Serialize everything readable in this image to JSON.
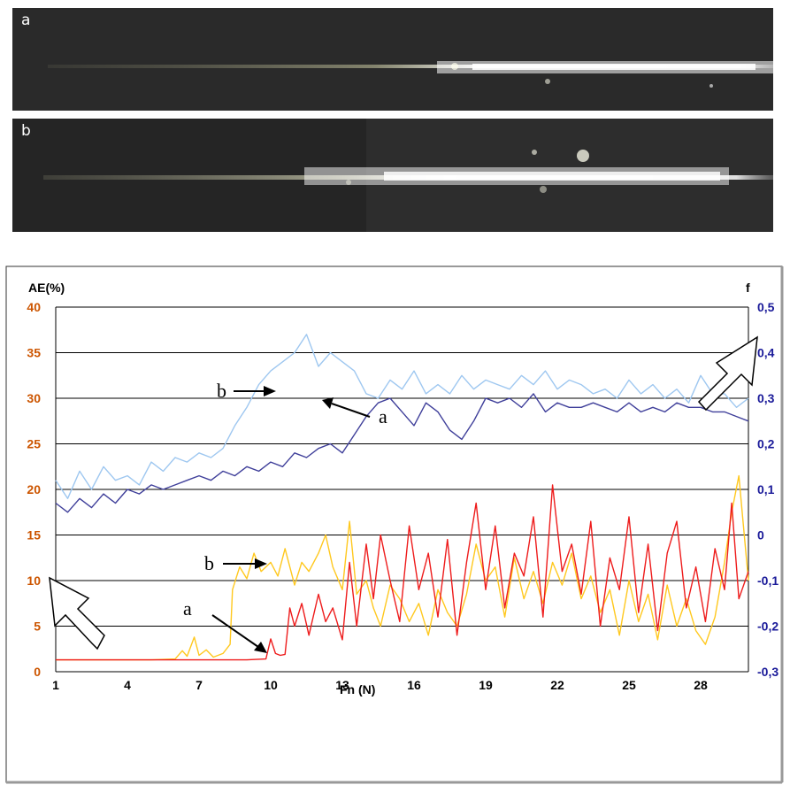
{
  "photos": [
    {
      "label": "a"
    },
    {
      "label": "b"
    }
  ],
  "chart_data": {
    "type": "line",
    "xlabel": "Fn (N)",
    "ylabel_left": "AE(%)",
    "ylabel_right": "f",
    "x_ticks": [
      "1",
      "4",
      "7",
      "10",
      "13",
      "16",
      "19",
      "22",
      "25",
      "28"
    ],
    "xlim": [
      1,
      30
    ],
    "y_left_ticks": [
      "0",
      "5",
      "10",
      "15",
      "20",
      "25",
      "30",
      "35",
      "40"
    ],
    "ylim_left": [
      0,
      40
    ],
    "y_right_ticks": [
      "-0,3",
      "-0,2",
      "-0,1",
      "0",
      "0,1",
      "0,2",
      "0,3",
      "0,4",
      "0,5"
    ],
    "ylim_right": [
      -0.3,
      0.5
    ],
    "grid": "horizontal",
    "colors": {
      "left_axis": "#cc5500",
      "right_axis": "#1a1a99",
      "friction_a": "#3f3f9a",
      "friction_b": "#9ec7f0",
      "ae_a": "#ee1c1c",
      "ae_b": "#ffc81e"
    },
    "series": [
      {
        "name": "b",
        "axis": "right",
        "x": [
          1,
          1.5,
          2,
          2.5,
          3,
          3.5,
          4,
          4.5,
          5,
          5.5,
          6,
          6.5,
          7,
          7.5,
          8,
          8.5,
          9,
          9.5,
          10,
          10.5,
          11,
          11.5,
          12,
          12.5,
          13,
          13.5,
          14,
          14.5,
          15,
          15.5,
          16,
          16.5,
          17,
          17.5,
          18,
          18.5,
          19,
          19.5,
          20,
          20.5,
          21,
          21.5,
          22,
          22.5,
          23,
          23.5,
          24,
          24.5,
          25,
          25.5,
          26,
          26.5,
          27,
          27.5,
          28,
          28.5,
          29,
          29.5,
          30
        ],
        "y": [
          0.12,
          0.08,
          0.14,
          0.1,
          0.15,
          0.12,
          0.13,
          0.11,
          0.16,
          0.14,
          0.17,
          0.16,
          0.18,
          0.17,
          0.19,
          0.24,
          0.28,
          0.33,
          0.36,
          0.38,
          0.4,
          0.44,
          0.37,
          0.4,
          0.38,
          0.36,
          0.31,
          0.3,
          0.34,
          0.32,
          0.36,
          0.31,
          0.33,
          0.31,
          0.35,
          0.32,
          0.34,
          0.33,
          0.32,
          0.35,
          0.33,
          0.36,
          0.32,
          0.34,
          0.33,
          0.31,
          0.32,
          0.3,
          0.34,
          0.31,
          0.33,
          0.3,
          0.32,
          0.29,
          0.35,
          0.31,
          0.31,
          0.28,
          0.3
        ]
      },
      {
        "name": "a",
        "axis": "right",
        "x": [
          1,
          1.5,
          2,
          2.5,
          3,
          3.5,
          4,
          4.5,
          5,
          5.5,
          6,
          6.5,
          7,
          7.5,
          8,
          8.5,
          9,
          9.5,
          10,
          10.5,
          11,
          11.5,
          12,
          12.5,
          13,
          13.5,
          14,
          14.5,
          15,
          15.5,
          16,
          16.5,
          17,
          17.5,
          18,
          18.5,
          19,
          19.5,
          20,
          20.5,
          21,
          21.5,
          22,
          22.5,
          23,
          23.5,
          24,
          24.5,
          25,
          25.5,
          26,
          26.5,
          27,
          27.5,
          28,
          28.5,
          29,
          29.5,
          30
        ],
        "y": [
          0.07,
          0.05,
          0.08,
          0.06,
          0.09,
          0.07,
          0.1,
          0.09,
          0.11,
          0.1,
          0.11,
          0.12,
          0.13,
          0.12,
          0.14,
          0.13,
          0.15,
          0.14,
          0.16,
          0.15,
          0.18,
          0.17,
          0.19,
          0.2,
          0.18,
          0.22,
          0.26,
          0.29,
          0.3,
          0.27,
          0.24,
          0.29,
          0.27,
          0.23,
          0.21,
          0.25,
          0.3,
          0.29,
          0.3,
          0.28,
          0.31,
          0.27,
          0.29,
          0.28,
          0.28,
          0.29,
          0.28,
          0.27,
          0.29,
          0.27,
          0.28,
          0.27,
          0.29,
          0.28,
          0.28,
          0.27,
          0.27,
          0.26,
          0.25
        ]
      },
      {
        "name": "b",
        "axis": "left",
        "x": [
          1,
          2,
          3,
          4,
          5,
          6,
          6.3,
          6.5,
          6.8,
          7,
          7.3,
          7.6,
          8,
          8.3,
          8.4,
          8.7,
          9,
          9.3,
          9.6,
          10,
          10.3,
          10.6,
          11,
          11.3,
          11.6,
          12,
          12.3,
          12.6,
          13,
          13.3,
          13.6,
          14,
          14.3,
          14.6,
          15,
          15.4,
          15.8,
          16.2,
          16.6,
          17,
          17.4,
          17.8,
          18.2,
          18.6,
          19,
          19.4,
          19.8,
          20.2,
          20.6,
          21,
          21.4,
          21.8,
          22.2,
          22.6,
          23,
          23.4,
          23.8,
          24.2,
          24.6,
          25,
          25.4,
          25.8,
          26.2,
          26.6,
          27,
          27.4,
          27.8,
          28.2,
          28.6,
          29,
          29.3,
          29.6,
          30
        ],
        "y": [
          1.3,
          1.3,
          1.3,
          1.3,
          1.3,
          1.4,
          2.3,
          1.7,
          3.8,
          1.8,
          2.4,
          1.6,
          2.0,
          3.0,
          9.0,
          11.5,
          10.2,
          13.0,
          11.0,
          12.0,
          10.5,
          13.5,
          9.5,
          12.0,
          11.0,
          13.0,
          15.0,
          11.5,
          9.0,
          16.5,
          8.5,
          10.0,
          7.0,
          5.0,
          9.5,
          8.0,
          5.5,
          7.5,
          4.0,
          9.0,
          6.5,
          5.0,
          8.5,
          14.0,
          10.0,
          11.5,
          6.0,
          12.5,
          8.0,
          11.0,
          7.5,
          12.0,
          9.5,
          13.0,
          8.0,
          10.5,
          6.5,
          9.0,
          4.0,
          10.0,
          5.5,
          8.5,
          3.5,
          9.5,
          5.0,
          8.0,
          4.5,
          3.0,
          6.0,
          12.0,
          17.5,
          21.5,
          10.0
        ]
      },
      {
        "name": "a",
        "axis": "left",
        "x": [
          1,
          2,
          3,
          4,
          5,
          6,
          7,
          8,
          9,
          9.8,
          10,
          10.2,
          10.4,
          10.6,
          10.8,
          11,
          11.3,
          11.6,
          12,
          12.3,
          12.6,
          13,
          13.3,
          13.6,
          14,
          14.3,
          14.6,
          15,
          15.4,
          15.8,
          16.2,
          16.6,
          17,
          17.4,
          17.8,
          18.2,
          18.6,
          19,
          19.4,
          19.8,
          20.2,
          20.6,
          21,
          21.4,
          21.8,
          22.2,
          22.6,
          23,
          23.4,
          23.8,
          24.2,
          24.6,
          25,
          25.4,
          25.8,
          26.2,
          26.6,
          27,
          27.4,
          27.8,
          28.2,
          28.6,
          29,
          29.3,
          29.6,
          30
        ],
        "y": [
          1.3,
          1.3,
          1.3,
          1.3,
          1.3,
          1.3,
          1.3,
          1.3,
          1.3,
          1.4,
          3.6,
          2.0,
          1.8,
          1.9,
          7.0,
          5.0,
          7.5,
          4.0,
          8.5,
          5.5,
          7.0,
          3.5,
          12.0,
          5.0,
          14.0,
          8.0,
          15.0,
          10.0,
          5.5,
          16.0,
          9.0,
          13.0,
          6.0,
          14.5,
          4.0,
          12.0,
          18.5,
          9.0,
          16.0,
          7.0,
          13.0,
          10.5,
          17.0,
          6.0,
          20.5,
          11.0,
          14.0,
          8.5,
          16.5,
          5.0,
          12.5,
          9.0,
          17.0,
          6.5,
          14.0,
          4.5,
          13.0,
          16.5,
          7.0,
          11.5,
          5.5,
          13.5,
          9.0,
          18.5,
          8.0,
          11.0
        ]
      }
    ],
    "annotations": [
      "b",
      "a",
      "b",
      "a"
    ]
  }
}
